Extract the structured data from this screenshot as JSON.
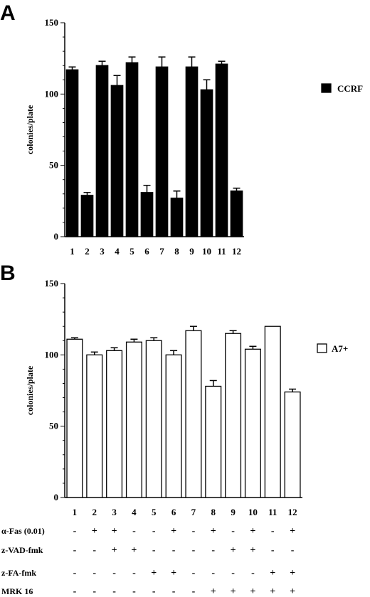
{
  "chart_data": [
    {
      "type": "bar",
      "panel": "A",
      "ylabel": "colonies/plate",
      "ylim": [
        0,
        150
      ],
      "yticks": [
        0,
        50,
        100,
        150
      ],
      "categories": [
        "1",
        "2",
        "3",
        "4",
        "5",
        "6",
        "7",
        "8",
        "9",
        "10",
        "11",
        "12"
      ],
      "series": [
        {
          "name": "CCRF",
          "fill": "#000000",
          "values": [
            117,
            29,
            120,
            106,
            122,
            31,
            119,
            27,
            119,
            103,
            121,
            32
          ],
          "errors": [
            2,
            2,
            3,
            7,
            4,
            5,
            7,
            5,
            7,
            7,
            2,
            2
          ]
        }
      ],
      "legend_position": "top-right"
    },
    {
      "type": "bar",
      "panel": "B",
      "ylabel": "colonies/plate",
      "ylim": [
        0,
        150
      ],
      "yticks": [
        0,
        50,
        100,
        150
      ],
      "categories": [
        "1",
        "2",
        "3",
        "4",
        "5",
        "6",
        "7",
        "8",
        "9",
        "10",
        "11",
        "12"
      ],
      "series": [
        {
          "name": "A7+",
          "fill": "#ffffff",
          "values": [
            111,
            100,
            103,
            109,
            110,
            100,
            117,
            78,
            115,
            104,
            120,
            74
          ],
          "errors": [
            1,
            2,
            2,
            2,
            2,
            3,
            3,
            4,
            2,
            2,
            0,
            2
          ]
        }
      ],
      "legend_position": "top-right"
    }
  ],
  "conditions": [
    {
      "label": "α-Fas (0.01)",
      "marks": [
        "-",
        "+",
        "+",
        "-",
        "-",
        "+",
        "-",
        "+",
        "-",
        "+",
        "-",
        "+"
      ]
    },
    {
      "label": "z-VAD-fmk",
      "marks": [
        "-",
        "-",
        "+",
        "+",
        "-",
        "-",
        "-",
        "-",
        "+",
        "+",
        "-",
        "-"
      ]
    },
    {
      "label": "z-FA-fmk",
      "marks": [
        "-",
        "-",
        "-",
        "-",
        "+",
        "+",
        "-",
        "-",
        "-",
        "-",
        "+",
        "+"
      ]
    },
    {
      "label": "MRK 16",
      "marks": [
        "-",
        "-",
        "-",
        "-",
        "-",
        "-",
        "-",
        "+",
        "+",
        "+",
        "+",
        "+"
      ]
    }
  ]
}
